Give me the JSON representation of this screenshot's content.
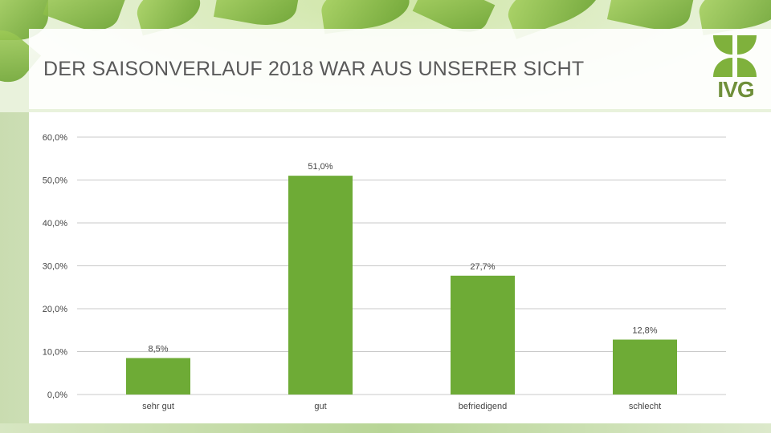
{
  "slide": {
    "title": "DER SAISONVERLAUF 2018 WAR AUS UNSERER SICHT",
    "logo_text": "IVG"
  },
  "colors": {
    "bar": "#6eab36",
    "grid": "#c8c8c8",
    "axis_text": "#444444",
    "title": "#5a5a5a",
    "logo": "#6f8f3a"
  },
  "chart_data": {
    "type": "bar",
    "categories": [
      "sehr gut",
      "gut",
      "befriedigend",
      "schlecht"
    ],
    "values": [
      8.5,
      51.0,
      27.7,
      12.8
    ],
    "value_labels": [
      "8,5%",
      "51,0%",
      "27,7%",
      "12,8%"
    ],
    "yticks": [
      0,
      10,
      20,
      30,
      40,
      50,
      60
    ],
    "ytick_labels": [
      "0,0%",
      "10,0%",
      "20,0%",
      "30,0%",
      "40,0%",
      "50,0%",
      "60,0%"
    ],
    "ylim": [
      0,
      60
    ],
    "grid": true,
    "legend": "none",
    "title": "",
    "xlabel": "",
    "ylabel": ""
  }
}
